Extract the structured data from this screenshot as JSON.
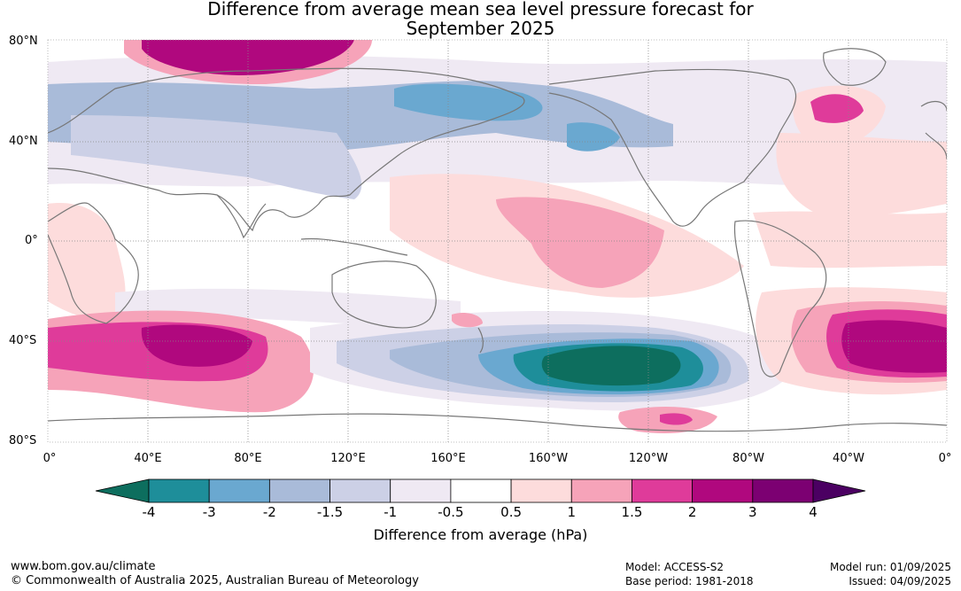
{
  "title_line1": "Difference from average mean sea level pressure forecast for",
  "title_line2": "September 2025",
  "lat_labels": [
    "80°N",
    "40°N",
    "0°",
    "40°S",
    "80°S"
  ],
  "lon_labels": [
    "0°",
    "40°E",
    "80°E",
    "120°E",
    "160°E",
    "160°W",
    "120°W",
    "80°W",
    "40°W",
    "0°"
  ],
  "colorbar": {
    "ticks": [
      "-4",
      "-3",
      "-2",
      "-1.5",
      "-1",
      "-0.5",
      "0.5",
      "1",
      "1.5",
      "2",
      "3",
      "4"
    ],
    "colors": [
      "#0d6e5e",
      "#1e8e9a",
      "#6aa8d0",
      "#a9bbd9",
      "#ccd0e6",
      "#efe9f3",
      "#ffffff",
      "#fddcdc",
      "#f6a3b9",
      "#df3b9a",
      "#b0087e",
      "#7c0072",
      "#4b0062"
    ],
    "label": "Difference from average (hPa)"
  },
  "footer": {
    "url": "www.bom.gov.au/climate",
    "copyright": "© Commonwealth of Australia 2025, Australian Bureau of Meteorology",
    "model": "Model: ACCESS-S2",
    "base_period": "Base period: 1981-2018",
    "model_run": "Model run: 01/09/2025",
    "issued": "Issued: 04/09/2025"
  }
}
